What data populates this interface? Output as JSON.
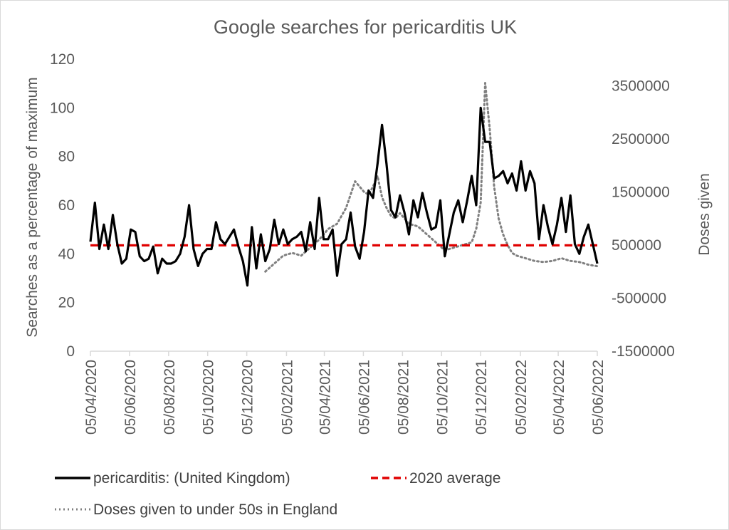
{
  "chart_data": {
    "type": "line",
    "title": "Google searches for pericarditis UK",
    "ylabel": "Searches as a percentage of maximum",
    "y2label": "Doses given",
    "ylim": [
      0,
      120
    ],
    "y2lim": [
      -1500000,
      4000000
    ],
    "yticks": [
      "0",
      "20",
      "40",
      "60",
      "80",
      "100",
      "120"
    ],
    "y2ticks": [
      "-1500000",
      "-500000",
      "500000",
      "1500000",
      "2500000",
      "3500000"
    ],
    "xticks": [
      "05/04/2020",
      "05/06/2020",
      "05/08/2020",
      "05/10/2020",
      "05/12/2020",
      "05/02/2021",
      "05/04/2021",
      "05/06/2021",
      "05/08/2021",
      "05/10/2021",
      "05/12/2021",
      "05/02/2022",
      "05/04/2022",
      "05/06/2022"
    ],
    "x_start": "2020-04-05",
    "x_end": "2022-06-05",
    "grid": false,
    "legend_position": "bottom",
    "series": [
      {
        "name": "pericarditis: (United Kingdom)",
        "axis": "left",
        "color": "#000000",
        "style": "solid",
        "x": [
          "2020-04-05",
          "2020-04-12",
          "2020-04-19",
          "2020-04-26",
          "2020-05-03",
          "2020-05-10",
          "2020-05-17",
          "2020-05-24",
          "2020-05-31",
          "2020-06-07",
          "2020-06-14",
          "2020-06-21",
          "2020-06-28",
          "2020-07-05",
          "2020-07-12",
          "2020-07-19",
          "2020-07-26",
          "2020-08-02",
          "2020-08-09",
          "2020-08-16",
          "2020-08-23",
          "2020-08-30",
          "2020-09-06",
          "2020-09-13",
          "2020-09-20",
          "2020-09-27",
          "2020-10-04",
          "2020-10-11",
          "2020-10-18",
          "2020-10-25",
          "2020-11-01",
          "2020-11-08",
          "2020-11-15",
          "2020-11-22",
          "2020-11-29",
          "2020-12-06",
          "2020-12-13",
          "2020-12-20",
          "2020-12-27",
          "2021-01-03",
          "2021-01-10",
          "2021-01-17",
          "2021-01-24",
          "2021-01-31",
          "2021-02-07",
          "2021-02-14",
          "2021-02-21",
          "2021-02-28",
          "2021-03-07",
          "2021-03-14",
          "2021-03-21",
          "2021-03-28",
          "2021-04-04",
          "2021-04-11",
          "2021-04-18",
          "2021-04-25",
          "2021-05-02",
          "2021-05-09",
          "2021-05-16",
          "2021-05-23",
          "2021-05-30",
          "2021-06-06",
          "2021-06-13",
          "2021-06-20",
          "2021-06-27",
          "2021-07-04",
          "2021-07-11",
          "2021-07-18",
          "2021-07-25",
          "2021-08-01",
          "2021-08-08",
          "2021-08-15",
          "2021-08-22",
          "2021-08-29",
          "2021-09-05",
          "2021-09-12",
          "2021-09-19",
          "2021-09-26",
          "2021-10-03",
          "2021-10-10",
          "2021-10-17",
          "2021-10-24",
          "2021-10-31",
          "2021-11-07",
          "2021-11-14",
          "2021-11-21",
          "2021-11-28",
          "2021-12-05",
          "2021-12-12",
          "2021-12-19",
          "2021-12-26",
          "2022-01-02",
          "2022-01-09",
          "2022-01-16",
          "2022-01-23",
          "2022-01-30",
          "2022-02-06",
          "2022-02-13",
          "2022-02-20",
          "2022-02-27",
          "2022-03-06",
          "2022-03-13",
          "2022-03-20",
          "2022-03-27",
          "2022-04-03",
          "2022-04-10",
          "2022-04-17",
          "2022-04-24",
          "2022-05-01",
          "2022-05-08",
          "2022-05-15",
          "2022-05-22",
          "2022-05-29",
          "2022-06-05"
        ],
        "values": [
          45,
          61,
          42,
          52,
          42,
          56,
          44,
          36,
          38,
          50,
          49,
          39,
          37,
          38,
          43,
          32,
          38,
          36,
          36,
          37,
          40,
          47,
          60,
          42,
          35,
          40,
          42,
          42,
          53,
          46,
          44,
          47,
          50,
          43,
          37,
          27,
          51,
          34,
          48,
          37,
          42,
          54,
          44,
          50,
          44,
          46,
          47,
          49,
          41,
          53,
          42,
          63,
          46,
          46,
          50,
          31,
          44,
          46,
          57,
          43,
          38,
          49,
          66,
          63,
          77,
          93,
          77,
          58,
          55,
          64,
          57,
          48,
          62,
          55,
          65,
          57,
          50,
          51,
          62,
          39,
          48,
          57,
          62,
          53,
          62,
          72,
          60,
          100,
          86,
          86,
          71,
          72,
          74,
          69,
          73,
          66,
          78,
          66,
          74,
          69,
          46,
          60,
          51,
          44,
          52,
          63,
          49,
          64,
          44,
          40,
          47,
          52,
          44,
          36
        ]
      },
      {
        "name": "2020 average",
        "axis": "left",
        "color": "#e00000",
        "style": "dashed",
        "x": [
          "2020-04-05",
          "2022-06-05"
        ],
        "values": [
          43.5,
          43.5
        ]
      },
      {
        "name": "Doses given to under 50s in England",
        "axis": "right",
        "color": "#808080",
        "style": "dotted",
        "x": [
          "2021-01-03",
          "2021-01-17",
          "2021-01-31",
          "2021-02-14",
          "2021-02-28",
          "2021-03-14",
          "2021-03-28",
          "2021-04-11",
          "2021-04-25",
          "2021-05-09",
          "2021-05-23",
          "2021-06-06",
          "2021-06-13",
          "2021-06-20",
          "2021-06-27",
          "2021-07-04",
          "2021-07-11",
          "2021-07-18",
          "2021-07-25",
          "2021-08-01",
          "2021-08-15",
          "2021-08-29",
          "2021-09-12",
          "2021-09-26",
          "2021-10-10",
          "2021-10-24",
          "2021-11-07",
          "2021-11-21",
          "2021-11-28",
          "2021-12-05",
          "2021-12-12",
          "2021-12-19",
          "2021-12-26",
          "2022-01-02",
          "2022-01-09",
          "2022-01-16",
          "2022-01-23",
          "2022-01-30",
          "2022-02-13",
          "2022-02-27",
          "2022-03-13",
          "2022-03-27",
          "2022-04-10",
          "2022-04-24",
          "2022-05-08",
          "2022-05-22",
          "2022-06-05"
        ],
        "values": [
          0,
          150000,
          300000,
          350000,
          300000,
          450000,
          600000,
          800000,
          900000,
          1200000,
          1700000,
          1500000,
          1450000,
          1600000,
          1800000,
          1400000,
          1200000,
          1050000,
          1000000,
          1100000,
          900000,
          850000,
          700000,
          550000,
          400000,
          450000,
          500000,
          550000,
          800000,
          1300000,
          3550000,
          2700000,
          1600000,
          1000000,
          700000,
          500000,
          350000,
          300000,
          250000,
          200000,
          180000,
          200000,
          250000,
          200000,
          180000,
          130000,
          100000
        ]
      }
    ]
  }
}
